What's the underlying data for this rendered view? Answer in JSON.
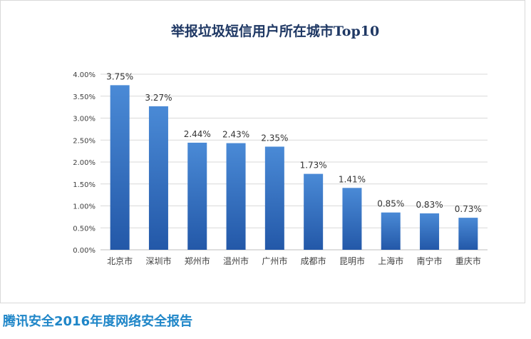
{
  "chart_data": {
    "type": "bar",
    "title": "举报垃圾短信用户所在城市Top10",
    "categories": [
      "北京市",
      "深圳市",
      "郑州市",
      "温州市",
      "广州市",
      "成都市",
      "昆明市",
      "上海市",
      "南宁市",
      "重庆市"
    ],
    "values": [
      3.75,
      3.27,
      2.44,
      2.43,
      2.35,
      1.73,
      1.41,
      0.85,
      0.83,
      0.73
    ],
    "value_labels": [
      "3.75%",
      "3.27%",
      "2.44%",
      "2.43%",
      "2.35%",
      "1.73%",
      "1.41%",
      "0.85%",
      "0.83%",
      "0.73%"
    ],
    "ylim": [
      0,
      4
    ],
    "yticks": [
      0,
      0.5,
      1,
      1.5,
      2,
      2.5,
      3,
      3.5,
      4
    ],
    "ytick_labels": [
      "0.00%",
      "0.50%",
      "1.00%",
      "1.50%",
      "2.00%",
      "2.50%",
      "3.00%",
      "3.50%",
      "4.00%"
    ],
    "grid": true,
    "legend": "none",
    "bar_color_top": "#4a8ad6",
    "bar_color_bottom": "#2358a8"
  },
  "footer": {
    "caption": "腾讯安全2016年度网络安全报告",
    "caption_color": "#1f86c8"
  }
}
